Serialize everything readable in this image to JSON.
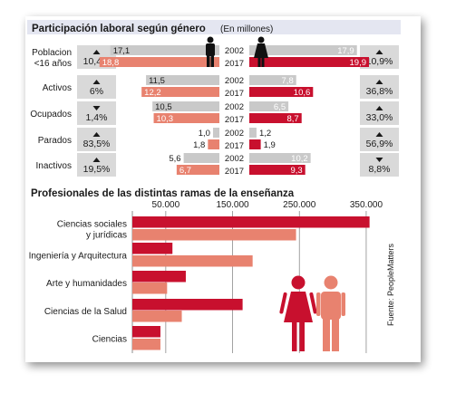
{
  "section1": {
    "title": "Participación laboral según género",
    "subtitle": "(En millones)",
    "year_labels": [
      "2002",
      "2017"
    ],
    "rows": [
      {
        "category": "Poblacion\n<16 años",
        "male_change": "10,4%",
        "male_dir": "up",
        "female_change": "10,9%",
        "female_dir": "up"
      },
      {
        "category": "Activos",
        "male_change": "6%",
        "male_dir": "up",
        "female_change": "36,8%",
        "female_dir": "up"
      },
      {
        "category": "Ocupados",
        "male_change": "1,4%",
        "male_dir": "down",
        "female_change": "33,0%",
        "female_dir": "up"
      },
      {
        "category": "Parados",
        "male_change": "83,5%",
        "male_dir": "up",
        "female_change": "56,9%",
        "female_dir": "up"
      },
      {
        "category": "Inactivos",
        "male_change": "19,5%",
        "male_dir": "up",
        "female_change": "8,8%",
        "female_dir": "down"
      }
    ]
  },
  "section2": {
    "title": "Profesionales de las distintas ramas de la enseñanza",
    "source": "Fuente: PeopleMatters"
  },
  "colors": {
    "title_bar": "#e4e6f1",
    "gray_bar": "#c9c9c9",
    "red_dark": "#c8102e",
    "red_light": "#e8826f",
    "change_box": "#d9d9d9",
    "grid": "#8c8c8c"
  },
  "icons": {
    "male": "male-figure-icon",
    "female": "female-figure-icon",
    "up": "arrow-up-icon",
    "down": "arrow-down-icon"
  },
  "chart_data": [
    {
      "type": "bar",
      "title": "Participación laboral según género",
      "subtitle": "(En millones)",
      "categories": [
        "Poblacion\n<16 años",
        "Activos",
        "Ocupados",
        "Parados",
        "Inactivos"
      ],
      "series": [
        {
          "values": [
            17.1,
            11.5,
            10.5,
            1.0,
            5.6
          ],
          "labels": [
            "17,1",
            "11,5",
            "10,5",
            "1,0",
            "5,6"
          ]
        },
        {
          "values": [
            18.8,
            12.2,
            10.3,
            1.8,
            6.7
          ],
          "labels": [
            "18,8",
            "12,2",
            "10,3",
            "1,8",
            "6,7"
          ]
        },
        {
          "values": [
            17.9,
            7.8,
            6.5,
            1.2,
            10.2
          ],
          "labels": [
            "17,9",
            "7,8",
            "6,5",
            "1,2",
            "10,2"
          ]
        },
        {
          "values": [
            19.9,
            10.6,
            8.7,
            1.9,
            9.3
          ],
          "labels": [
            "19,9",
            "10,6",
            "8,7",
            "1,9",
            "9,3"
          ]
        }
      ],
      "years": [
        "2002",
        "2017"
      ]
    },
    {
      "type": "bar",
      "title": "Profesionales de las distintas ramas de la enseñanza",
      "orientation": "horizontal",
      "categories": [
        "Ciencias sociales\ny jurídicas",
        "Ingeniería y Arquitectura",
        "Arte y humanidades",
        "Ciencias de la Salud",
        "Ciencias"
      ],
      "series": [
        {
          "values": [
            355000,
            60000,
            80000,
            165000,
            42000
          ]
        },
        {
          "values": [
            245000,
            180000,
            52000,
            74000,
            42000
          ]
        }
      ],
      "ticks": [
        50000,
        150000,
        250000,
        350000
      ],
      "tick_labels": [
        "50.000",
        "150.000",
        "250.000",
        "350.000"
      ],
      "xlim": [
        0,
        365000
      ],
      "grid": true,
      "annotation": "Fuente: PeopleMatters"
    }
  ]
}
